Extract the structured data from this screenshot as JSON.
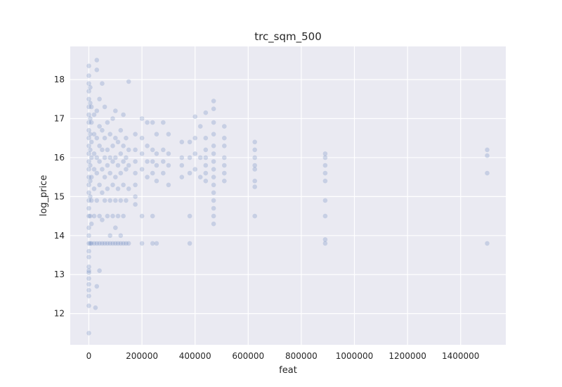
{
  "chart_data": {
    "type": "scatter",
    "title": "trc_sqm_500",
    "xlabel": "feat",
    "ylabel": "log_price",
    "xlim": [
      -70000,
      1570000
    ],
    "ylim": [
      11.2,
      18.85
    ],
    "x_ticks": [
      0,
      200000,
      400000,
      600000,
      800000,
      1000000,
      1200000,
      1400000
    ],
    "y_ticks": [
      12,
      13,
      14,
      15,
      16,
      17,
      18
    ],
    "grid": true,
    "colors": {
      "background": "#eaeaf2",
      "grid": "#ffffff",
      "point": "#4c72b0"
    },
    "point_alpha": 0.22,
    "series": [
      {
        "points": [
          [
            0,
            11.5
          ],
          [
            0,
            12.2
          ],
          [
            0,
            12.45
          ],
          [
            0,
            12.6
          ],
          [
            0,
            12.75
          ],
          [
            0,
            12.9
          ],
          [
            0,
            13.05
          ],
          [
            0,
            13.1
          ],
          [
            0,
            13.2
          ],
          [
            0,
            13.45
          ],
          [
            0,
            13.6
          ],
          [
            0,
            13.8
          ],
          [
            0,
            14.0
          ],
          [
            0,
            14.2
          ],
          [
            0,
            14.5
          ],
          [
            0,
            14.7
          ],
          [
            0,
            14.9
          ],
          [
            0,
            15.1
          ],
          [
            0,
            15.3
          ],
          [
            0,
            15.5
          ],
          [
            0,
            15.7
          ],
          [
            0,
            15.9
          ],
          [
            0,
            16.1
          ],
          [
            0,
            16.3
          ],
          [
            0,
            16.5
          ],
          [
            0,
            16.7
          ],
          [
            0,
            16.9
          ],
          [
            0,
            17.1
          ],
          [
            0,
            17.3
          ],
          [
            0,
            17.5
          ],
          [
            0,
            17.7
          ],
          [
            0,
            17.9
          ],
          [
            0,
            18.1
          ],
          [
            0,
            18.35
          ],
          [
            5000,
            13.8
          ],
          [
            5000,
            14.5
          ],
          [
            5000,
            15.0
          ],
          [
            5000,
            15.4
          ],
          [
            5000,
            15.8
          ],
          [
            5000,
            16.2
          ],
          [
            5000,
            16.6
          ],
          [
            5000,
            17.0
          ],
          [
            5000,
            17.4
          ],
          [
            5000,
            17.8
          ],
          [
            10000,
            13.8
          ],
          [
            10000,
            14.3
          ],
          [
            10000,
            14.9
          ],
          [
            10000,
            15.5
          ],
          [
            10000,
            16.0
          ],
          [
            10000,
            16.4
          ],
          [
            10000,
            16.9
          ],
          [
            10000,
            17.3
          ],
          [
            20000,
            13.8
          ],
          [
            20000,
            14.5
          ],
          [
            20000,
            15.2
          ],
          [
            20000,
            15.7
          ],
          [
            20000,
            16.1
          ],
          [
            20000,
            16.6
          ],
          [
            20000,
            17.1
          ],
          [
            25000,
            12.15
          ],
          [
            30000,
            12.7
          ],
          [
            30000,
            13.8
          ],
          [
            30000,
            14.9
          ],
          [
            30000,
            15.6
          ],
          [
            30000,
            16.0
          ],
          [
            30000,
            16.5
          ],
          [
            30000,
            17.2
          ],
          [
            30000,
            18.25
          ],
          [
            30000,
            18.5
          ],
          [
            40000,
            13.1
          ],
          [
            40000,
            13.8
          ],
          [
            40000,
            14.5
          ],
          [
            40000,
            15.3
          ],
          [
            40000,
            15.9
          ],
          [
            40000,
            16.3
          ],
          [
            40000,
            16.8
          ],
          [
            40000,
            17.5
          ],
          [
            50000,
            13.8
          ],
          [
            50000,
            14.4
          ],
          [
            50000,
            15.1
          ],
          [
            50000,
            15.7
          ],
          [
            50000,
            16.2
          ],
          [
            50000,
            16.7
          ],
          [
            50000,
            17.9
          ],
          [
            60000,
            13.8
          ],
          [
            60000,
            14.9
          ],
          [
            60000,
            15.5
          ],
          [
            60000,
            16.0
          ],
          [
            60000,
            16.5
          ],
          [
            60000,
            17.3
          ],
          [
            70000,
            13.8
          ],
          [
            70000,
            14.5
          ],
          [
            70000,
            15.2
          ],
          [
            70000,
            15.8
          ],
          [
            70000,
            16.2
          ],
          [
            70000,
            16.9
          ],
          [
            80000,
            13.8
          ],
          [
            80000,
            14.0
          ],
          [
            80000,
            14.9
          ],
          [
            80000,
            15.6
          ],
          [
            80000,
            16.0
          ],
          [
            80000,
            16.6
          ],
          [
            90000,
            13.8
          ],
          [
            90000,
            14.5
          ],
          [
            90000,
            15.3
          ],
          [
            90000,
            15.9
          ],
          [
            90000,
            16.3
          ],
          [
            90000,
            17.0
          ],
          [
            100000,
            13.8
          ],
          [
            100000,
            14.2
          ],
          [
            100000,
            14.9
          ],
          [
            100000,
            15.5
          ],
          [
            100000,
            16.0
          ],
          [
            100000,
            16.5
          ],
          [
            100000,
            17.2
          ],
          [
            110000,
            13.8
          ],
          [
            110000,
            14.5
          ],
          [
            110000,
            15.2
          ],
          [
            110000,
            15.8
          ],
          [
            110000,
            16.4
          ],
          [
            120000,
            13.8
          ],
          [
            120000,
            14.0
          ],
          [
            120000,
            14.9
          ],
          [
            120000,
            15.6
          ],
          [
            120000,
            16.1
          ],
          [
            120000,
            16.7
          ],
          [
            130000,
            13.8
          ],
          [
            130000,
            14.5
          ],
          [
            130000,
            15.3
          ],
          [
            130000,
            15.9
          ],
          [
            130000,
            16.3
          ],
          [
            130000,
            17.1
          ],
          [
            140000,
            13.8
          ],
          [
            140000,
            14.9
          ],
          [
            140000,
            15.7
          ],
          [
            140000,
            16.0
          ],
          [
            140000,
            16.5
          ],
          [
            150000,
            13.8
          ],
          [
            150000,
            15.2
          ],
          [
            150000,
            15.8
          ],
          [
            150000,
            16.2
          ],
          [
            150000,
            17.95
          ],
          [
            175000,
            14.8
          ],
          [
            175000,
            15.0
          ],
          [
            175000,
            15.3
          ],
          [
            175000,
            15.6
          ],
          [
            175000,
            15.9
          ],
          [
            175000,
            16.2
          ],
          [
            175000,
            16.6
          ],
          [
            200000,
            13.8
          ],
          [
            200000,
            14.5
          ],
          [
            200000,
            15.7
          ],
          [
            200000,
            16.1
          ],
          [
            200000,
            16.5
          ],
          [
            200000,
            17.0
          ],
          [
            220000,
            15.5
          ],
          [
            220000,
            15.9
          ],
          [
            220000,
            16.3
          ],
          [
            220000,
            16.9
          ],
          [
            240000,
            13.8
          ],
          [
            240000,
            14.5
          ],
          [
            240000,
            15.6
          ],
          [
            240000,
            15.9
          ],
          [
            240000,
            16.2
          ],
          [
            240000,
            16.9
          ],
          [
            255000,
            13.8
          ],
          [
            255000,
            15.4
          ],
          [
            255000,
            15.8
          ],
          [
            255000,
            16.1
          ],
          [
            255000,
            16.6
          ],
          [
            280000,
            15.6
          ],
          [
            280000,
            15.9
          ],
          [
            280000,
            16.2
          ],
          [
            280000,
            16.9
          ],
          [
            300000,
            15.3
          ],
          [
            300000,
            15.8
          ],
          [
            300000,
            16.1
          ],
          [
            300000,
            16.6
          ],
          [
            350000,
            15.5
          ],
          [
            350000,
            15.8
          ],
          [
            350000,
            16.0
          ],
          [
            350000,
            16.4
          ],
          [
            380000,
            13.8
          ],
          [
            380000,
            14.5
          ],
          [
            380000,
            15.6
          ],
          [
            380000,
            16.0
          ],
          [
            380000,
            16.4
          ],
          [
            400000,
            15.7
          ],
          [
            400000,
            16.1
          ],
          [
            400000,
            16.5
          ],
          [
            400000,
            17.05
          ],
          [
            420000,
            15.5
          ],
          [
            420000,
            16.0
          ],
          [
            420000,
            16.8
          ],
          [
            440000,
            15.4
          ],
          [
            440000,
            15.6
          ],
          [
            440000,
            15.8
          ],
          [
            440000,
            16.0
          ],
          [
            440000,
            16.2
          ],
          [
            440000,
            16.5
          ],
          [
            440000,
            17.15
          ],
          [
            470000,
            14.3
          ],
          [
            470000,
            14.5
          ],
          [
            470000,
            14.7
          ],
          [
            470000,
            14.9
          ],
          [
            470000,
            15.1
          ],
          [
            470000,
            15.3
          ],
          [
            470000,
            15.5
          ],
          [
            470000,
            15.7
          ],
          [
            470000,
            15.9
          ],
          [
            470000,
            16.1
          ],
          [
            470000,
            16.3
          ],
          [
            470000,
            16.6
          ],
          [
            470000,
            16.9
          ],
          [
            470000,
            17.25
          ],
          [
            470000,
            17.45
          ],
          [
            510000,
            15.4
          ],
          [
            510000,
            15.6
          ],
          [
            510000,
            15.8
          ],
          [
            510000,
            16.0
          ],
          [
            510000,
            16.3
          ],
          [
            510000,
            16.5
          ],
          [
            510000,
            16.8
          ],
          [
            625000,
            14.5
          ],
          [
            625000,
            15.25
          ],
          [
            625000,
            15.4
          ],
          [
            625000,
            15.7
          ],
          [
            625000,
            15.8
          ],
          [
            625000,
            16.0
          ],
          [
            625000,
            16.2
          ],
          [
            625000,
            16.4
          ],
          [
            890000,
            13.8
          ],
          [
            890000,
            13.9
          ],
          [
            890000,
            14.5
          ],
          [
            890000,
            14.9
          ],
          [
            890000,
            15.4
          ],
          [
            890000,
            15.6
          ],
          [
            890000,
            15.8
          ],
          [
            890000,
            16.0
          ],
          [
            890000,
            16.1
          ],
          [
            1500000,
            13.8
          ],
          [
            1500000,
            15.6
          ],
          [
            1500000,
            16.05
          ],
          [
            1500000,
            16.2
          ]
        ]
      }
    ]
  }
}
